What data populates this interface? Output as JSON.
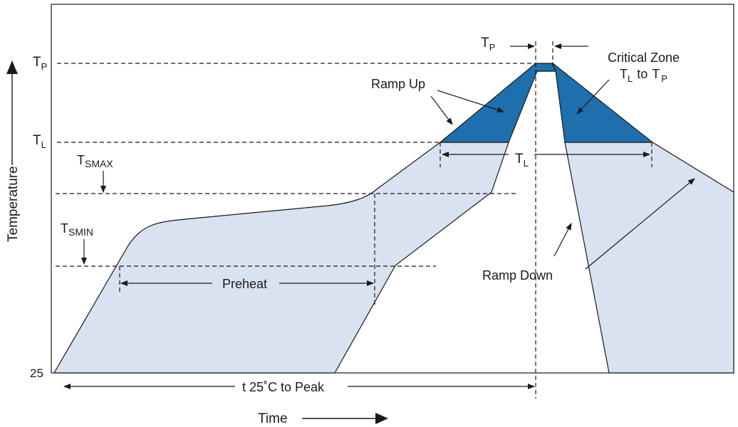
{
  "y_axis": {
    "title": "Temperature",
    "ticks": {
      "tp": {
        "main": "T",
        "sub": "P"
      },
      "tl": {
        "main": "T",
        "sub": "L"
      },
      "t25": "25"
    }
  },
  "x_axis": {
    "title": "Time"
  },
  "annotations": {
    "tsmax": {
      "main": "T",
      "sub": "SMAX"
    },
    "tsmin": {
      "main": "T",
      "sub": "SMIN"
    },
    "preheat": "Preheat",
    "t25_to_peak": "t 25˚C to Peak",
    "ramp_up": "Ramp Up",
    "ramp_down": "Ramp Down",
    "tp_window": {
      "main": "T",
      "sub": "P"
    },
    "tl_window": {
      "main": "T",
      "sub": "L"
    },
    "critical_zone": {
      "line1": "Critical Zone",
      "t1_main": "T",
      "t1_sub": "L",
      "to": "to",
      "t2_main": "T",
      "t2_sub": "P"
    }
  },
  "colors": {
    "light_fill": "#d9e2f0",
    "critical_fill": "#1f6fae",
    "outline": "#1a1a1a"
  }
}
